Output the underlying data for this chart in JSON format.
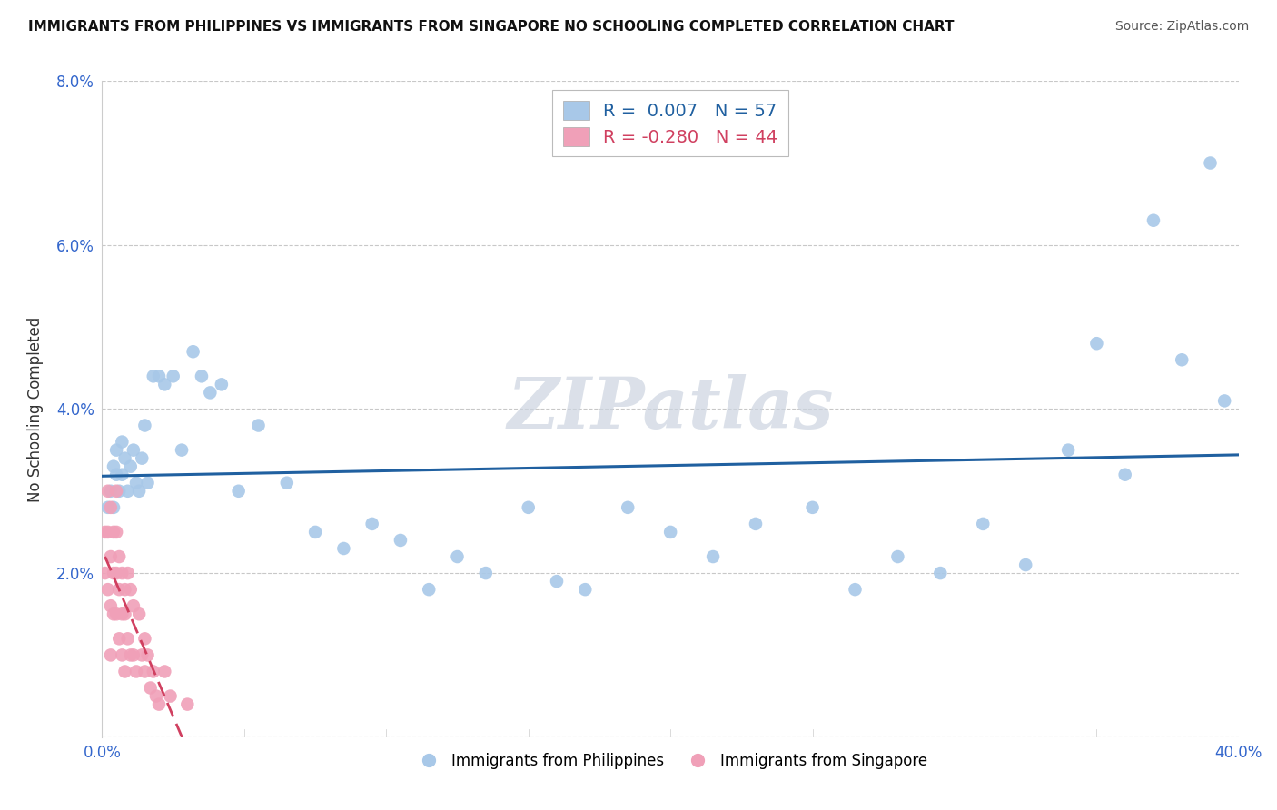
{
  "title": "IMMIGRANTS FROM PHILIPPINES VS IMMIGRANTS FROM SINGAPORE NO SCHOOLING COMPLETED CORRELATION CHART",
  "source": "Source: ZipAtlas.com",
  "ylabel": "No Schooling Completed",
  "xlim": [
    0.0,
    0.4
  ],
  "ylim": [
    0.0,
    0.08
  ],
  "xticks": [
    0.0,
    0.05,
    0.1,
    0.15,
    0.2,
    0.25,
    0.3,
    0.35,
    0.4
  ],
  "yticks": [
    0.0,
    0.02,
    0.04,
    0.06,
    0.08
  ],
  "philippines_R": 0.007,
  "philippines_N": 57,
  "singapore_R": -0.28,
  "singapore_N": 44,
  "philippines_color": "#a8c8e8",
  "singapore_color": "#f0a0b8",
  "philippines_line_color": "#2060a0",
  "singapore_line_color": "#d04060",
  "background_color": "#ffffff",
  "grid_color": "#c8c8c8",
  "watermark": "ZIPatlas",
  "watermark_color": "#ccd4e0",
  "philippines_x": [
    0.002,
    0.003,
    0.004,
    0.004,
    0.005,
    0.005,
    0.006,
    0.007,
    0.007,
    0.008,
    0.009,
    0.01,
    0.011,
    0.012,
    0.013,
    0.014,
    0.015,
    0.016,
    0.018,
    0.02,
    0.022,
    0.025,
    0.028,
    0.032,
    0.035,
    0.038,
    0.042,
    0.048,
    0.055,
    0.065,
    0.075,
    0.085,
    0.095,
    0.105,
    0.115,
    0.125,
    0.135,
    0.15,
    0.16,
    0.17,
    0.185,
    0.2,
    0.215,
    0.23,
    0.25,
    0.265,
    0.28,
    0.295,
    0.31,
    0.325,
    0.34,
    0.35,
    0.36,
    0.37,
    0.38,
    0.39,
    0.395
  ],
  "philippines_y": [
    0.028,
    0.03,
    0.033,
    0.028,
    0.035,
    0.032,
    0.03,
    0.032,
    0.036,
    0.034,
    0.03,
    0.033,
    0.035,
    0.031,
    0.03,
    0.034,
    0.038,
    0.031,
    0.044,
    0.044,
    0.043,
    0.044,
    0.035,
    0.047,
    0.044,
    0.042,
    0.043,
    0.03,
    0.038,
    0.031,
    0.025,
    0.023,
    0.026,
    0.024,
    0.018,
    0.022,
    0.02,
    0.028,
    0.019,
    0.018,
    0.028,
    0.025,
    0.022,
    0.026,
    0.028,
    0.018,
    0.022,
    0.02,
    0.026,
    0.021,
    0.035,
    0.048,
    0.032,
    0.063,
    0.046,
    0.07,
    0.041
  ],
  "singapore_x": [
    0.001,
    0.001,
    0.002,
    0.002,
    0.002,
    0.003,
    0.003,
    0.003,
    0.003,
    0.004,
    0.004,
    0.004,
    0.005,
    0.005,
    0.005,
    0.005,
    0.006,
    0.006,
    0.006,
    0.007,
    0.007,
    0.007,
    0.008,
    0.008,
    0.008,
    0.009,
    0.009,
    0.01,
    0.01,
    0.011,
    0.011,
    0.012,
    0.013,
    0.014,
    0.015,
    0.015,
    0.016,
    0.017,
    0.018,
    0.019,
    0.02,
    0.022,
    0.024,
    0.03
  ],
  "singapore_y": [
    0.025,
    0.02,
    0.03,
    0.025,
    0.018,
    0.028,
    0.022,
    0.016,
    0.01,
    0.025,
    0.02,
    0.015,
    0.03,
    0.025,
    0.02,
    0.015,
    0.022,
    0.018,
    0.012,
    0.02,
    0.015,
    0.01,
    0.018,
    0.015,
    0.008,
    0.02,
    0.012,
    0.018,
    0.01,
    0.016,
    0.01,
    0.008,
    0.015,
    0.01,
    0.012,
    0.008,
    0.01,
    0.006,
    0.008,
    0.005,
    0.004,
    0.008,
    0.005,
    0.004
  ]
}
